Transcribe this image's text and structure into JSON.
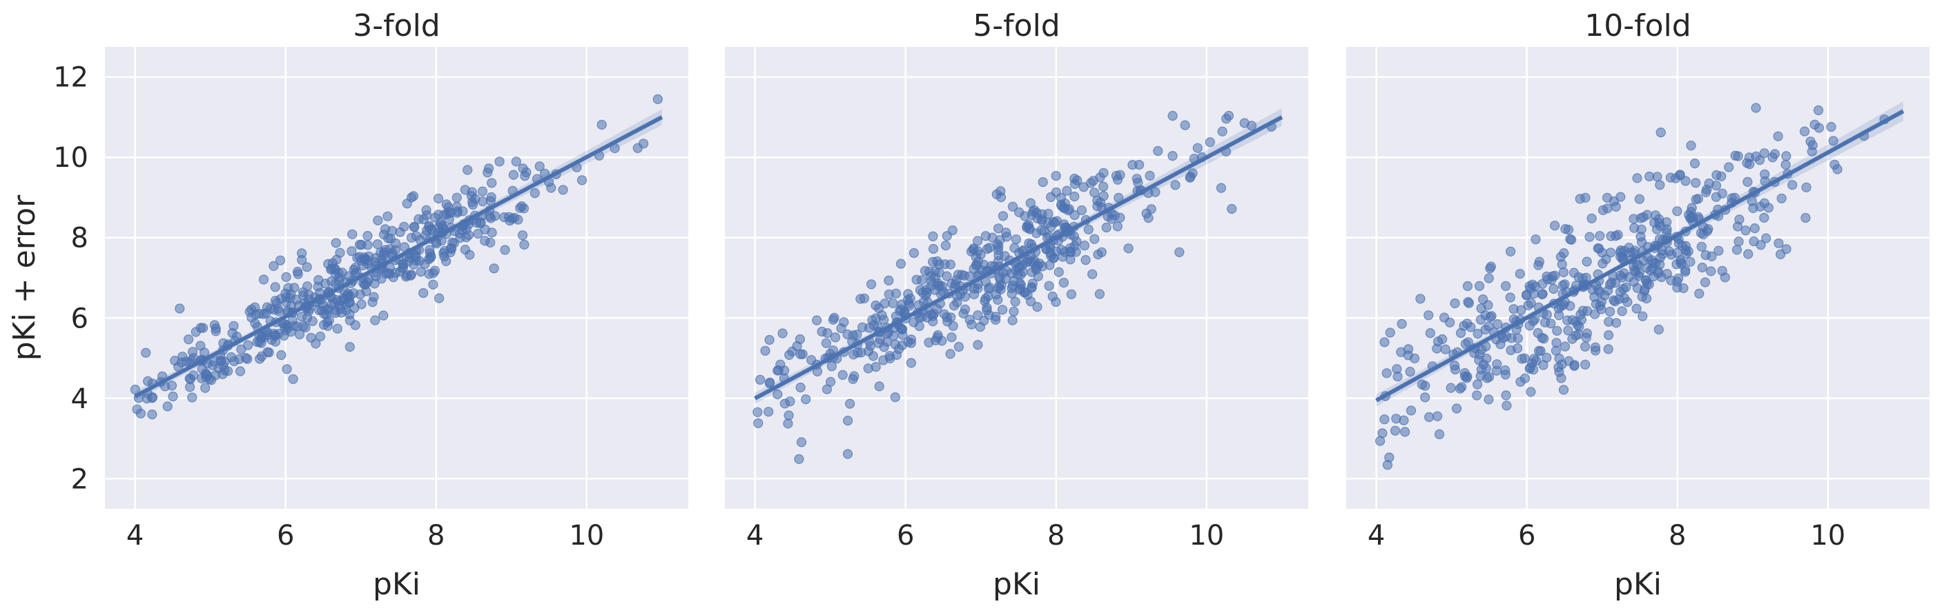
{
  "chart_data": [
    {
      "type": "scatter",
      "title": "3-fold",
      "xlabel": "pKi",
      "ylabel": "pKi + error",
      "xlim": [
        3.6,
        11.35
      ],
      "ylim": [
        1.25,
        12.75
      ],
      "xticks": [
        4,
        6,
        8,
        10
      ],
      "yticks": [
        2,
        4,
        6,
        8,
        10,
        12
      ],
      "grid": true,
      "points_count": 500,
      "noise_sd": 0.55,
      "seed": 11,
      "fit": {
        "x": [
          4,
          11
        ],
        "y": [
          4.05,
          11.0
        ]
      }
    },
    {
      "type": "scatter",
      "title": "5-fold",
      "xlabel": "pKi",
      "ylabel": "",
      "xlim": [
        3.6,
        11.35
      ],
      "ylim": [
        1.25,
        12.75
      ],
      "xticks": [
        4,
        6,
        8,
        10
      ],
      "yticks": [
        2,
        4,
        6,
        8,
        10,
        12
      ],
      "grid": true,
      "points_count": 500,
      "noise_sd": 0.72,
      "seed": 23,
      "fit": {
        "x": [
          4,
          11
        ],
        "y": [
          4.0,
          11.0
        ]
      }
    },
    {
      "type": "scatter",
      "title": "10-fold",
      "xlabel": "pKi",
      "ylabel": "",
      "xlim": [
        3.6,
        11.35
      ],
      "ylim": [
        1.25,
        12.75
      ],
      "xticks": [
        4,
        6,
        8,
        10
      ],
      "yticks": [
        2,
        4,
        6,
        8,
        10,
        12
      ],
      "grid": true,
      "points_count": 500,
      "noise_sd": 0.92,
      "seed": 37,
      "fit": {
        "x": [
          4,
          11
        ],
        "y": [
          3.95,
          11.15
        ]
      }
    }
  ]
}
